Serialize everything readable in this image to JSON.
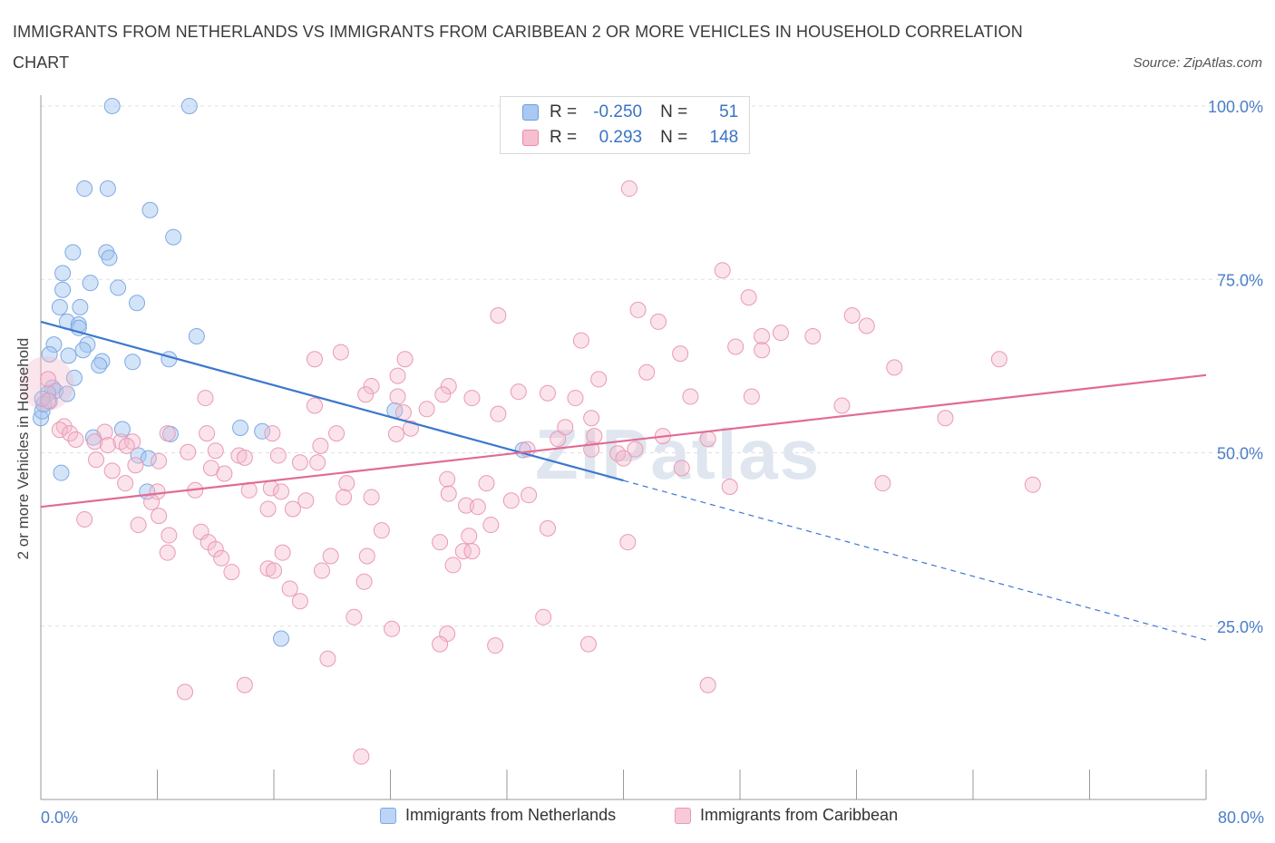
{
  "title": "IMMIGRANTS FROM NETHERLANDS VS IMMIGRANTS FROM CARIBBEAN 2 OR MORE VEHICLES IN HOUSEHOLD CORRELATION CHART",
  "source": "Source: ZipAtlas.com",
  "watermark": "ZIPatlas",
  "legend": {
    "rows": [
      {
        "r_label": "R =",
        "r_value": "-0.250",
        "n_label": "N =",
        "n_value": "51",
        "color": "#a9c8f2",
        "border": "#6b9ee0"
      },
      {
        "r_label": "R =",
        "r_value": "0.293",
        "n_label": "N =",
        "n_value": "148",
        "color": "#f6bfd0",
        "border": "#e88aa8"
      }
    ]
  },
  "bottom_legend": [
    {
      "label": "Immigrants from Netherlands",
      "color": "#bcd4f5",
      "border": "#7ea9e3"
    },
    {
      "label": "Immigrants from Caribbean",
      "color": "#f8c9d8",
      "border": "#e99ab3"
    }
  ],
  "chart_data": {
    "type": "scatter",
    "ylabel": "2 or more Vehicles in Household",
    "xlim": [
      0,
      80
    ],
    "ylim": [
      0,
      100
    ],
    "x_tick_labels": {
      "left": "0.0%",
      "right": "80.0%"
    },
    "y_ticks": [
      {
        "value": 100,
        "label": "100.0%"
      },
      {
        "value": 75,
        "label": "75.0%"
      },
      {
        "value": 50,
        "label": "50.0%"
      },
      {
        "value": 25,
        "label": "25.0%"
      }
    ],
    "grid": true,
    "series": [
      {
        "name": "Immigrants from Netherlands",
        "color": "#7ea9e3",
        "fill": "rgba(160,196,240,0.45)",
        "trend_color": "#3b78d0",
        "trend": {
          "x0": 0,
          "y0": 68.9,
          "x1": 40,
          "y1": 46.0,
          "dash_x1": 80,
          "dash_y1": 23.0
        },
        "points": [
          [
            4.9,
            100
          ],
          [
            10.2,
            100
          ],
          [
            3.0,
            88.1
          ],
          [
            4.6,
            88.1
          ],
          [
            7.5,
            85.0
          ],
          [
            9.1,
            81.1
          ],
          [
            2.2,
            78.9
          ],
          [
            4.5,
            78.9
          ],
          [
            4.7,
            78.1
          ],
          [
            1.5,
            75.9
          ],
          [
            3.4,
            74.5
          ],
          [
            5.3,
            73.8
          ],
          [
            1.5,
            73.5
          ],
          [
            6.6,
            71.6
          ],
          [
            1.3,
            71.0
          ],
          [
            2.7,
            71.0
          ],
          [
            1.8,
            68.9
          ],
          [
            2.6,
            68.5
          ],
          [
            2.6,
            68.0
          ],
          [
            10.7,
            66.8
          ],
          [
            0.9,
            65.6
          ],
          [
            3.2,
            65.6
          ],
          [
            2.9,
            64.8
          ],
          [
            0.6,
            64.2
          ],
          [
            1.9,
            64.0
          ],
          [
            8.8,
            63.5
          ],
          [
            4.2,
            63.2
          ],
          [
            6.3,
            63.1
          ],
          [
            4.0,
            62.6
          ],
          [
            2.3,
            60.8
          ],
          [
            0.8,
            59.4
          ],
          [
            1.0,
            58.9
          ],
          [
            0.5,
            58.6
          ],
          [
            1.8,
            58.5
          ],
          [
            0.6,
            57.4
          ],
          [
            24.3,
            56.1
          ],
          [
            13.7,
            53.6
          ],
          [
            5.6,
            53.4
          ],
          [
            15.2,
            53.1
          ],
          [
            8.9,
            52.7
          ],
          [
            3.6,
            52.2
          ],
          [
            33.1,
            50.4
          ],
          [
            6.7,
            49.6
          ],
          [
            7.4,
            49.2
          ],
          [
            1.4,
            47.1
          ],
          [
            7.3,
            44.4
          ],
          [
            16.5,
            23.2
          ],
          [
            0.0,
            55.0
          ],
          [
            0.1,
            56.0
          ],
          [
            0.2,
            57.0
          ],
          [
            0.1,
            57.8
          ]
        ]
      },
      {
        "name": "Immigrants from Caribbean",
        "color": "#e99ab3",
        "fill": "rgba(246,185,205,0.40)",
        "trend_color": "#e16b95",
        "trend": {
          "x0": 0,
          "y0": 42.2,
          "x1": 80,
          "y1": 61.2
        },
        "points": [
          [
            40.4,
            88.1
          ],
          [
            46.8,
            76.3
          ],
          [
            48.6,
            72.4
          ],
          [
            41.0,
            70.6
          ],
          [
            31.4,
            69.8
          ],
          [
            42.4,
            68.9
          ],
          [
            55.7,
            69.8
          ],
          [
            56.7,
            68.3
          ],
          [
            49.5,
            66.8
          ],
          [
            50.8,
            67.3
          ],
          [
            53.0,
            66.8
          ],
          [
            37.1,
            66.2
          ],
          [
            47.7,
            65.3
          ],
          [
            49.5,
            64.8
          ],
          [
            43.9,
            64.3
          ],
          [
            20.6,
            64.5
          ],
          [
            18.8,
            63.5
          ],
          [
            25.0,
            63.5
          ],
          [
            65.8,
            63.5
          ],
          [
            58.6,
            62.3
          ],
          [
            41.6,
            61.6
          ],
          [
            24.5,
            61.1
          ],
          [
            38.3,
            60.6
          ],
          [
            22.7,
            59.6
          ],
          [
            28.0,
            59.6
          ],
          [
            32.8,
            58.8
          ],
          [
            34.8,
            58.6
          ],
          [
            22.3,
            58.4
          ],
          [
            27.6,
            58.4
          ],
          [
            24.5,
            58.1
          ],
          [
            11.3,
            57.9
          ],
          [
            36.7,
            57.9
          ],
          [
            44.6,
            58.1
          ],
          [
            48.8,
            58.1
          ],
          [
            29.6,
            57.9
          ],
          [
            18.8,
            56.8
          ],
          [
            55.0,
            56.8
          ],
          [
            24.9,
            55.8
          ],
          [
            62.1,
            55.0
          ],
          [
            37.8,
            55.0
          ],
          [
            1.6,
            53.8
          ],
          [
            1.3,
            53.3
          ],
          [
            2.0,
            52.8
          ],
          [
            4.4,
            53.0
          ],
          [
            2.4,
            51.9
          ],
          [
            11.4,
            52.8
          ],
          [
            8.7,
            52.8
          ],
          [
            15.9,
            52.8
          ],
          [
            20.3,
            52.8
          ],
          [
            24.4,
            52.7
          ],
          [
            38.0,
            52.4
          ],
          [
            42.7,
            52.4
          ],
          [
            35.5,
            52.0
          ],
          [
            3.7,
            51.6
          ],
          [
            5.5,
            51.6
          ],
          [
            6.3,
            51.6
          ],
          [
            5.9,
            51.0
          ],
          [
            4.6,
            51.1
          ],
          [
            12.0,
            50.3
          ],
          [
            10.1,
            50.1
          ],
          [
            13.6,
            49.6
          ],
          [
            14.0,
            49.3
          ],
          [
            16.3,
            49.6
          ],
          [
            39.6,
            49.9
          ],
          [
            33.4,
            50.5
          ],
          [
            37.8,
            50.5
          ],
          [
            40.8,
            50.5
          ],
          [
            3.8,
            49.0
          ],
          [
            8.1,
            48.8
          ],
          [
            17.8,
            48.6
          ],
          [
            19.0,
            48.6
          ],
          [
            6.5,
            48.2
          ],
          [
            11.7,
            47.8
          ],
          [
            12.6,
            47.0
          ],
          [
            4.9,
            47.4
          ],
          [
            27.9,
            46.2
          ],
          [
            21.0,
            45.6
          ],
          [
            30.6,
            45.6
          ],
          [
            57.8,
            45.6
          ],
          [
            68.1,
            45.4
          ],
          [
            47.3,
            45.1
          ],
          [
            5.8,
            45.6
          ],
          [
            8.0,
            44.4
          ],
          [
            14.3,
            44.6
          ],
          [
            15.8,
            44.9
          ],
          [
            16.5,
            44.4
          ],
          [
            10.6,
            44.6
          ],
          [
            28.0,
            44.1
          ],
          [
            33.5,
            43.9
          ],
          [
            20.8,
            43.6
          ],
          [
            22.7,
            43.6
          ],
          [
            18.2,
            43.1
          ],
          [
            32.3,
            43.1
          ],
          [
            7.6,
            42.9
          ],
          [
            29.2,
            42.4
          ],
          [
            30.0,
            42.2
          ],
          [
            15.6,
            41.9
          ],
          [
            17.3,
            41.9
          ],
          [
            8.1,
            40.9
          ],
          [
            3.0,
            40.4
          ],
          [
            6.7,
            39.6
          ],
          [
            30.9,
            39.6
          ],
          [
            23.4,
            38.8
          ],
          [
            34.8,
            39.1
          ],
          [
            11.0,
            38.6
          ],
          [
            8.8,
            38.1
          ],
          [
            11.5,
            37.1
          ],
          [
            27.4,
            37.1
          ],
          [
            40.3,
            37.1
          ],
          [
            12.0,
            36.1
          ],
          [
            8.7,
            35.6
          ],
          [
            16.6,
            35.6
          ],
          [
            29.0,
            35.8
          ],
          [
            29.6,
            35.8
          ],
          [
            22.4,
            35.1
          ],
          [
            19.9,
            35.1
          ],
          [
            12.4,
            34.8
          ],
          [
            28.3,
            33.8
          ],
          [
            15.6,
            33.3
          ],
          [
            16.0,
            33.0
          ],
          [
            19.3,
            33.0
          ],
          [
            13.1,
            32.8
          ],
          [
            22.2,
            31.4
          ],
          [
            17.1,
            30.4
          ],
          [
            17.8,
            28.6
          ],
          [
            34.5,
            26.3
          ],
          [
            21.5,
            26.3
          ],
          [
            24.1,
            24.6
          ],
          [
            27.9,
            23.9
          ],
          [
            27.4,
            22.4
          ],
          [
            31.2,
            22.2
          ],
          [
            37.6,
            22.4
          ],
          [
            19.7,
            20.3
          ],
          [
            14.0,
            16.5
          ],
          [
            45.8,
            16.5
          ],
          [
            9.9,
            15.5
          ],
          [
            22.0,
            6.2
          ],
          [
            0.5,
            60.6
          ],
          [
            26.5,
            56.3
          ],
          [
            0.5,
            57.5
          ],
          [
            45.8,
            52.0
          ],
          [
            40.0,
            49.2
          ],
          [
            25.4,
            53.5
          ],
          [
            36.0,
            53.7
          ],
          [
            29.4,
            38.0
          ],
          [
            31.4,
            55.6
          ],
          [
            19.2,
            51.0
          ],
          [
            44.0,
            47.8
          ]
        ]
      }
    ]
  }
}
